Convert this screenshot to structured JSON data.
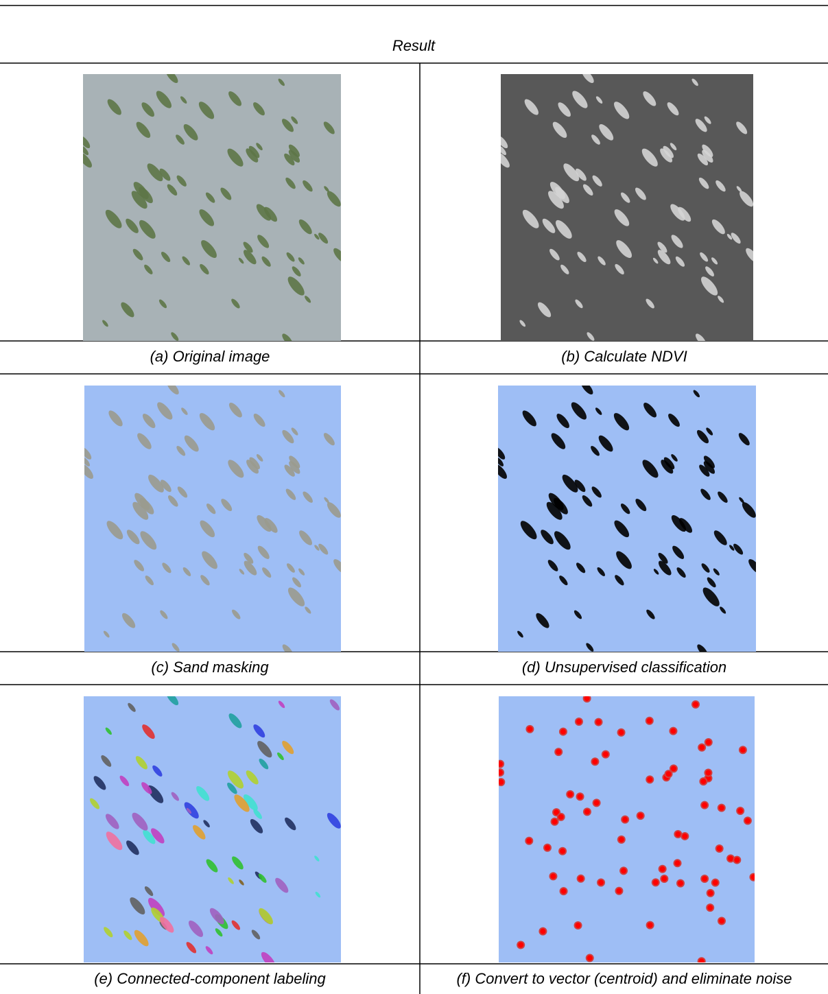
{
  "header": {
    "title": "Result"
  },
  "captions": [
    "(a) Original image",
    "(b) Calculate NDVI",
    "(c) Sand masking",
    "(d) Unsupervised classification",
    "(e) Connected-component labeling",
    "(f) Convert to vector (centroid) and eliminate noise"
  ]
}
